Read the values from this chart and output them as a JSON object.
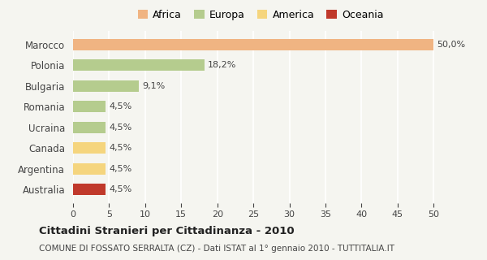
{
  "categories": [
    "Marocco",
    "Polonia",
    "Bulgaria",
    "Romania",
    "Ucraina",
    "Canada",
    "Argentina",
    "Australia"
  ],
  "values": [
    50.0,
    18.2,
    9.1,
    4.5,
    4.5,
    4.5,
    4.5,
    4.5
  ],
  "labels": [
    "50,0%",
    "18,2%",
    "9,1%",
    "4,5%",
    "4,5%",
    "4,5%",
    "4,5%",
    "4,5%"
  ],
  "colors": [
    "#f0b482",
    "#b5cc8e",
    "#b5cc8e",
    "#b5cc8e",
    "#b5cc8e",
    "#f5d57e",
    "#f5d57e",
    "#c0392b"
  ],
  "legend": [
    {
      "label": "Africa",
      "color": "#f0b482"
    },
    {
      "label": "Europa",
      "color": "#b5cc8e"
    },
    {
      "label": "America",
      "color": "#f5d57e"
    },
    {
      "label": "Oceania",
      "color": "#c0392b"
    }
  ],
  "xlim": [
    0,
    52
  ],
  "xticks": [
    0,
    5,
    10,
    15,
    20,
    25,
    30,
    35,
    40,
    45,
    50
  ],
  "title": "Cittadini Stranieri per Cittadinanza - 2010",
  "subtitle": "COMUNE DI FOSSATO SERRALTA (CZ) - Dati ISTAT al 1° gennaio 2010 - TUTTITALIA.IT",
  "background_color": "#f5f5f0",
  "grid_color": "#ffffff",
  "bar_height": 0.55
}
